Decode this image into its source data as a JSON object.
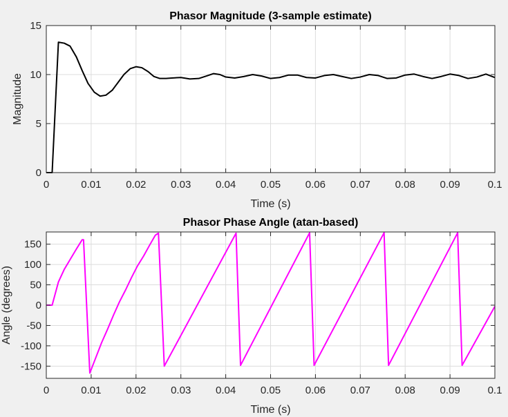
{
  "chart_data": [
    {
      "type": "line",
      "title": "Phasor Magnitude (3-sample estimate)",
      "xlabel": "Time (s)",
      "ylabel": "Magnitude",
      "xlim": [
        0,
        0.1
      ],
      "ylim": [
        0,
        15
      ],
      "xticks": [
        "0",
        "0.01",
        "0.02",
        "0.03",
        "0.04",
        "0.05",
        "0.06",
        "0.07",
        "0.08",
        "0.09",
        "0.1"
      ],
      "yticks": [
        "0",
        "5",
        "10",
        "15"
      ],
      "grid": true,
      "color": "#000000",
      "series": [
        {
          "x": [
            0,
            0.0013,
            0.0027,
            0.004,
            0.0053,
            0.0067,
            0.008,
            0.0093,
            0.0107,
            0.012,
            0.0133,
            0.0147,
            0.016,
            0.0173,
            0.0187,
            0.02,
            0.0213,
            0.0227,
            0.024,
            0.0253,
            0.0267,
            0.028,
            0.03,
            0.032,
            0.034,
            0.036,
            0.0373,
            0.0387,
            0.04,
            0.042,
            0.044,
            0.046,
            0.048,
            0.05,
            0.052,
            0.054,
            0.056,
            0.058,
            0.06,
            0.062,
            0.064,
            0.066,
            0.068,
            0.07,
            0.072,
            0.074,
            0.076,
            0.078,
            0.08,
            0.082,
            0.084,
            0.086,
            0.088,
            0.09,
            0.092,
            0.094,
            0.096,
            0.098,
            0.1
          ],
          "y": [
            0,
            0,
            13.3,
            13.2,
            12.9,
            11.8,
            10.4,
            9.1,
            8.2,
            7.8,
            7.9,
            8.4,
            9.2,
            10.0,
            10.6,
            10.8,
            10.7,
            10.3,
            9.8,
            9.6,
            9.6,
            9.65,
            9.7,
            9.55,
            9.6,
            9.9,
            10.1,
            10.0,
            9.75,
            9.65,
            9.8,
            10.0,
            9.85,
            9.6,
            9.7,
            9.95,
            9.95,
            9.7,
            9.65,
            9.9,
            10.0,
            9.8,
            9.6,
            9.75,
            10.0,
            9.9,
            9.6,
            9.65,
            9.95,
            10.05,
            9.8,
            9.6,
            9.8,
            10.05,
            9.9,
            9.6,
            9.75,
            10.05,
            9.7
          ]
        }
      ]
    },
    {
      "type": "line",
      "title": "Phasor Phase Angle (atan-based)",
      "xlabel": "Time (s)",
      "ylabel": "Angle (degrees)",
      "xlim": [
        0,
        0.1
      ],
      "ylim": [
        -180,
        180
      ],
      "xticks": [
        "0",
        "0.01",
        "0.02",
        "0.03",
        "0.04",
        "0.05",
        "0.06",
        "0.07",
        "0.08",
        "0.09",
        "0.1"
      ],
      "yticks": [
        "-150",
        "-100",
        "-50",
        "0",
        "50",
        "100",
        "150"
      ],
      "grid": true,
      "color": "#ff00ff",
      "series": [
        {
          "x": [
            0,
            0.0013,
            0.0027,
            0.004,
            0.0053,
            0.0067,
            0.008,
            0.0083,
            0.0097,
            0.011,
            0.0123,
            0.0137,
            0.015,
            0.0163,
            0.0177,
            0.019,
            0.0203,
            0.0217,
            0.023,
            0.0243,
            0.025,
            0.0263,
            0.0423,
            0.0433,
            0.0587,
            0.0597,
            0.0753,
            0.0763,
            0.0917,
            0.0927,
            0.1
          ],
          "y": [
            0,
            0,
            57,
            88,
            112,
            138,
            161,
            161,
            -167,
            -130,
            -93,
            -58,
            -24,
            8,
            38,
            68,
            96,
            121,
            147,
            172,
            177,
            -150,
            177,
            -148,
            178,
            -148,
            178,
            -148,
            178,
            -148,
            -3
          ]
        }
      ]
    }
  ]
}
